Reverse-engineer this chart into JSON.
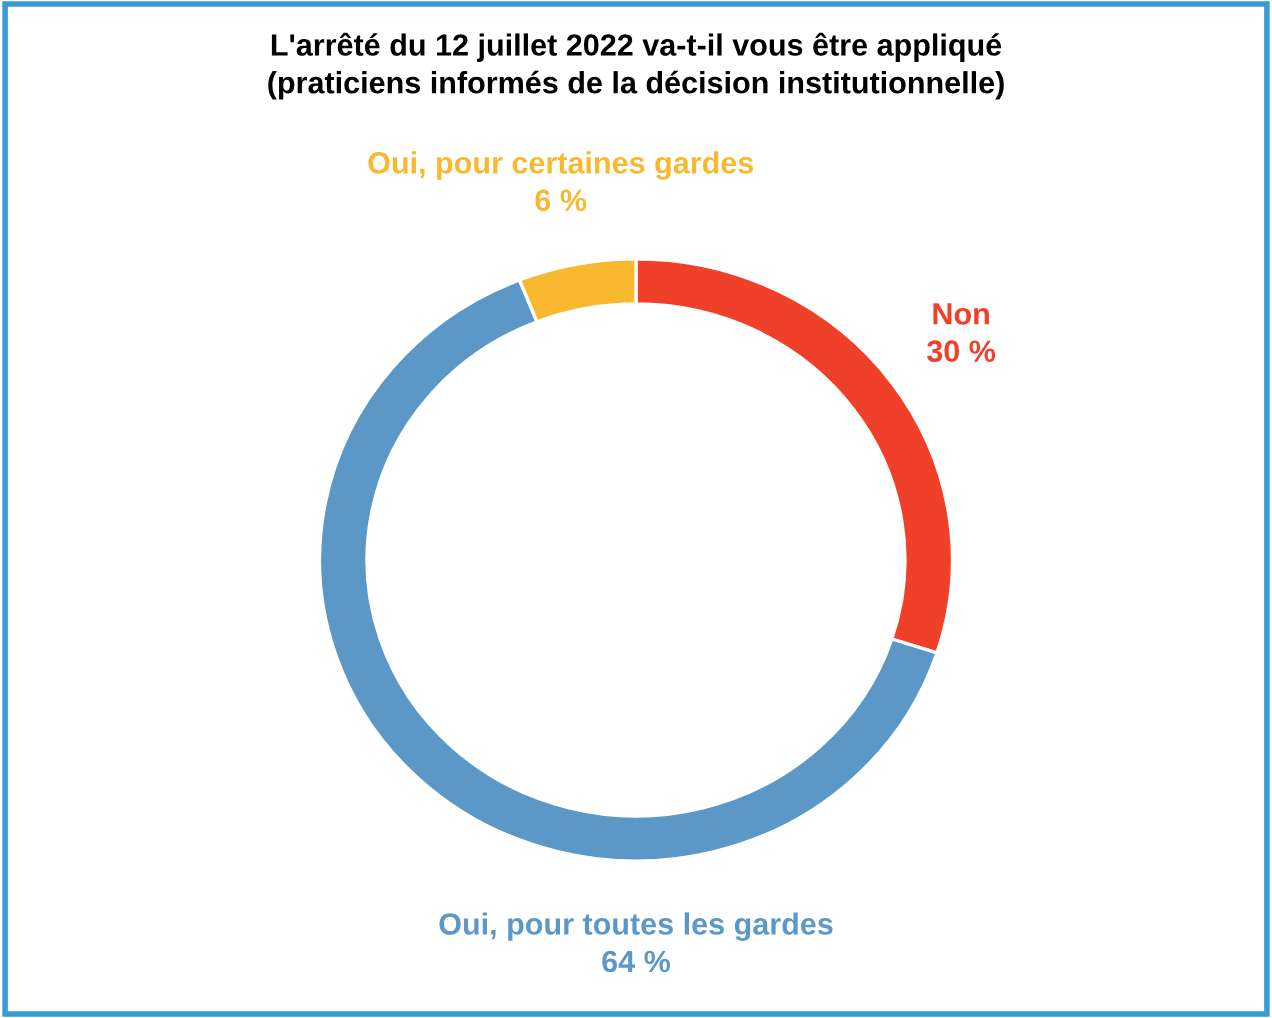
{
  "chart_data": {
    "type": "donut",
    "title": "L'arrêté du 12 juillet 2022 va-t-il vous être appliqué\n(praticiens informés de la décision institutionnelle)",
    "categories": [
      "Non",
      "Oui, pour toutes les gardes",
      "Oui, pour certaines gardes"
    ],
    "values": [
      30,
      64,
      6
    ],
    "colors": [
      "#f0402a",
      "#5b98c8",
      "#f8b830"
    ],
    "value_labels": [
      "30 %",
      "64 %",
      "6 %"
    ],
    "legend": false
  }
}
